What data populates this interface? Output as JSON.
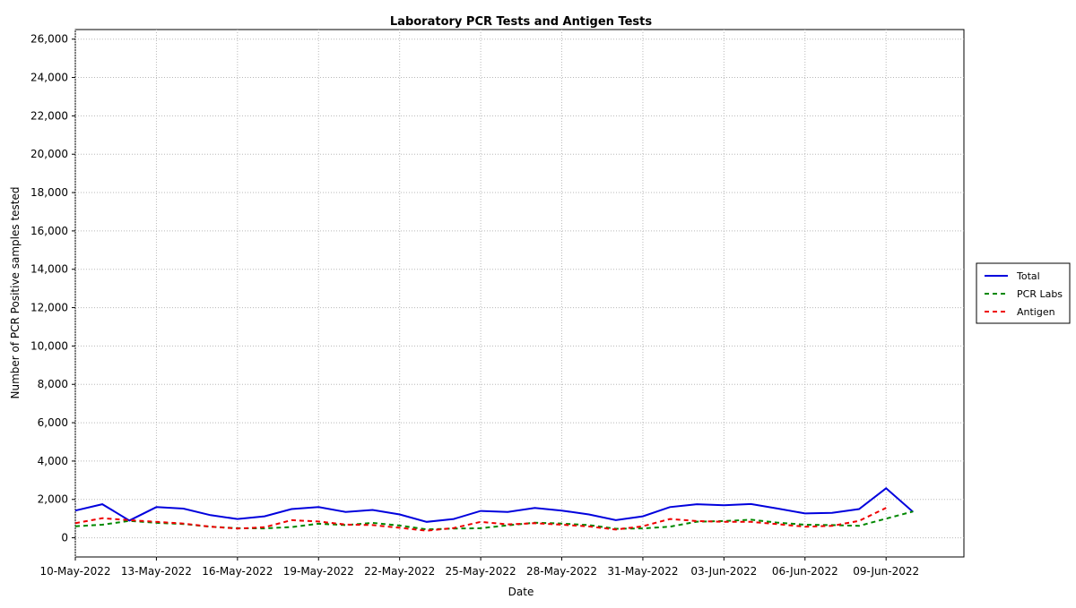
{
  "chart_data": {
    "type": "line",
    "title": "Laboratory PCR Tests and Antigen Tests",
    "xlabel": "Date",
    "ylabel": "Number of PCR Positive samples tested",
    "ylim": [
      -1000,
      26500
    ],
    "yticks": [
      0,
      2000,
      4000,
      6000,
      8000,
      10000,
      12000,
      14000,
      16000,
      18000,
      20000,
      22000,
      24000,
      26000
    ],
    "ytick_labels": [
      "0",
      "2,000",
      "4,000",
      "6,000",
      "8,000",
      "10,000",
      "12,000",
      "14,000",
      "16,000",
      "18,000",
      "20,000",
      "22,000",
      "24,000",
      "26,000"
    ],
    "xtick_labels": [
      "10-May-2022",
      "13-May-2022",
      "16-May-2022",
      "19-May-2022",
      "22-May-2022",
      "25-May-2022",
      "28-May-2022",
      "31-May-2022",
      "03-Jun-2022",
      "06-Jun-2022",
      "09-Jun-2022"
    ],
    "grid": true,
    "legend_position": "right",
    "x": [
      "2022-05-10",
      "2022-05-11",
      "2022-05-12",
      "2022-05-13",
      "2022-05-14",
      "2022-05-15",
      "2022-05-16",
      "2022-05-17",
      "2022-05-18",
      "2022-05-19",
      "2022-05-20",
      "2022-05-21",
      "2022-05-22",
      "2022-05-23",
      "2022-05-24",
      "2022-05-25",
      "2022-05-26",
      "2022-05-27",
      "2022-05-28",
      "2022-05-29",
      "2022-05-30",
      "2022-05-31",
      "2022-06-01",
      "2022-06-02",
      "2022-06-03",
      "2022-06-04",
      "2022-06-05",
      "2022-06-06",
      "2022-06-07",
      "2022-06-08",
      "2022-06-09",
      "2022-06-10"
    ],
    "series": [
      {
        "name": "Total",
        "color": "#0000dd",
        "dash": "solid",
        "values": [
          1420,
          1750,
          900,
          1600,
          1520,
          1180,
          980,
          1120,
          1500,
          1600,
          1350,
          1450,
          1220,
          830,
          980,
          1400,
          1350,
          1560,
          1420,
          1220,
          920,
          1120,
          1600,
          1750,
          1700,
          1760,
          1520,
          1270,
          1300,
          1500,
          2580,
          1350
        ]
      },
      {
        "name": "PCR Labs",
        "color": "#008800",
        "dash": "dashed",
        "values": [
          600,
          680,
          880,
          780,
          720,
          580,
          500,
          490,
          560,
          730,
          660,
          780,
          640,
          440,
          480,
          500,
          650,
          790,
          740,
          660,
          470,
          490,
          580,
          840,
          870,
          940,
          790,
          680,
          660,
          620,
          1000,
          1370
        ]
      },
      {
        "name": "Antigen",
        "color": "#ee0000",
        "dash": "dashed",
        "values": [
          760,
          1020,
          920,
          830,
          740,
          580,
          480,
          550,
          920,
          850,
          690,
          660,
          520,
          370,
          510,
          830,
          700,
          760,
          680,
          590,
          430,
          600,
          980,
          870,
          830,
          830,
          710,
          580,
          620,
          880,
          1560,
          null
        ]
      }
    ]
  }
}
